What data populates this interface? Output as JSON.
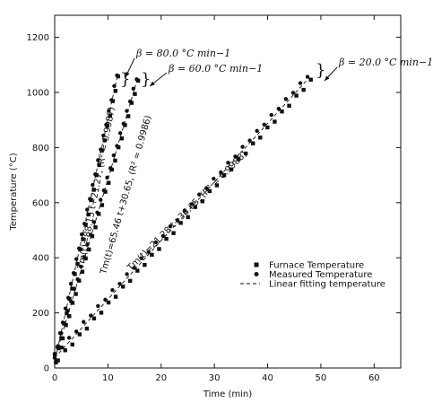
{
  "chart_data": {
    "type": "scatter",
    "title": "",
    "xlabel": "Time (min)",
    "ylabel": "Temperature (°C)",
    "xlim": [
      0,
      65
    ],
    "ylim": [
      0,
      1280
    ],
    "xticks": [
      0,
      10,
      20,
      30,
      40,
      50,
      60
    ],
    "yticks": [
      0,
      200,
      400,
      600,
      800,
      1000,
      1200
    ],
    "grid": false,
    "legend_position": "right-middle",
    "legend": [
      {
        "label": "Furnace Temperature",
        "marker": "square"
      },
      {
        "label": "Measured Temperature",
        "marker": "circle"
      },
      {
        "label": "Linear fitting temperature",
        "marker": "dashed-line"
      }
    ],
    "series": [
      {
        "group": "80.0",
        "beta_label": "β = 80.0 °C min−1",
        "fit_label": "Tm(t)=88.15 t+21.27, (R² = 0.9987)",
        "fit": {
          "slope": 88.15,
          "intercept": 21.27
        },
        "t_end": 11.7,
        "n_points": 24
      },
      {
        "group": "60.0",
        "beta_label": "β = 60.0 °C min−1",
        "fit_label": "Tm(t)=65.46 t+30.65, (R² = 0.9986)",
        "fit": {
          "slope": 65.46,
          "intercept": 30.65
        },
        "t_end": 15.4,
        "n_points": 26
      },
      {
        "group": "20.0",
        "beta_label": "β = 20.0 °C min−1",
        "fit_label": "Tm(t)=21.28 t+36.65, (R² = 0.9988)",
        "fit": {
          "slope": 21.28,
          "intercept": 36.65
        },
        "t_end": 47.5,
        "n_points": 36
      }
    ]
  },
  "colors": {
    "axis": "#111111",
    "marker": "#111111"
  }
}
